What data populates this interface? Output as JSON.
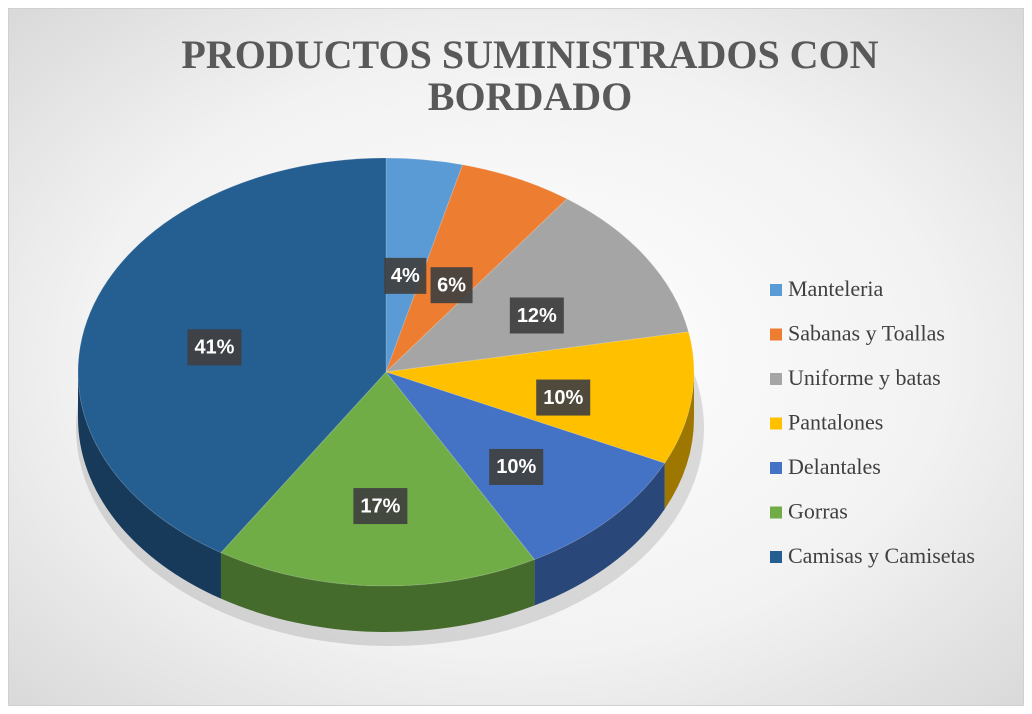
{
  "chart_data": {
    "type": "pie",
    "title": "PRODUCTOS SUMINISTRADOS CON BORDADO",
    "categories": [
      "Manteleria",
      "Sabanas y Toallas",
      "Uniforme y batas",
      "Pantalones",
      "Delantales",
      "Gorras",
      "Camisas y Camisetas"
    ],
    "values": [
      4,
      6,
      12,
      10,
      10,
      17,
      41
    ],
    "value_labels": [
      "4%",
      "6%",
      "12%",
      "10%",
      "10%",
      "17%",
      "41%"
    ],
    "colors": [
      "#5b9bd5",
      "#ed7d31",
      "#a5a5a5",
      "#ffc000",
      "#4472c4",
      "#70ad47",
      "#255e91"
    ],
    "legend": "right"
  }
}
